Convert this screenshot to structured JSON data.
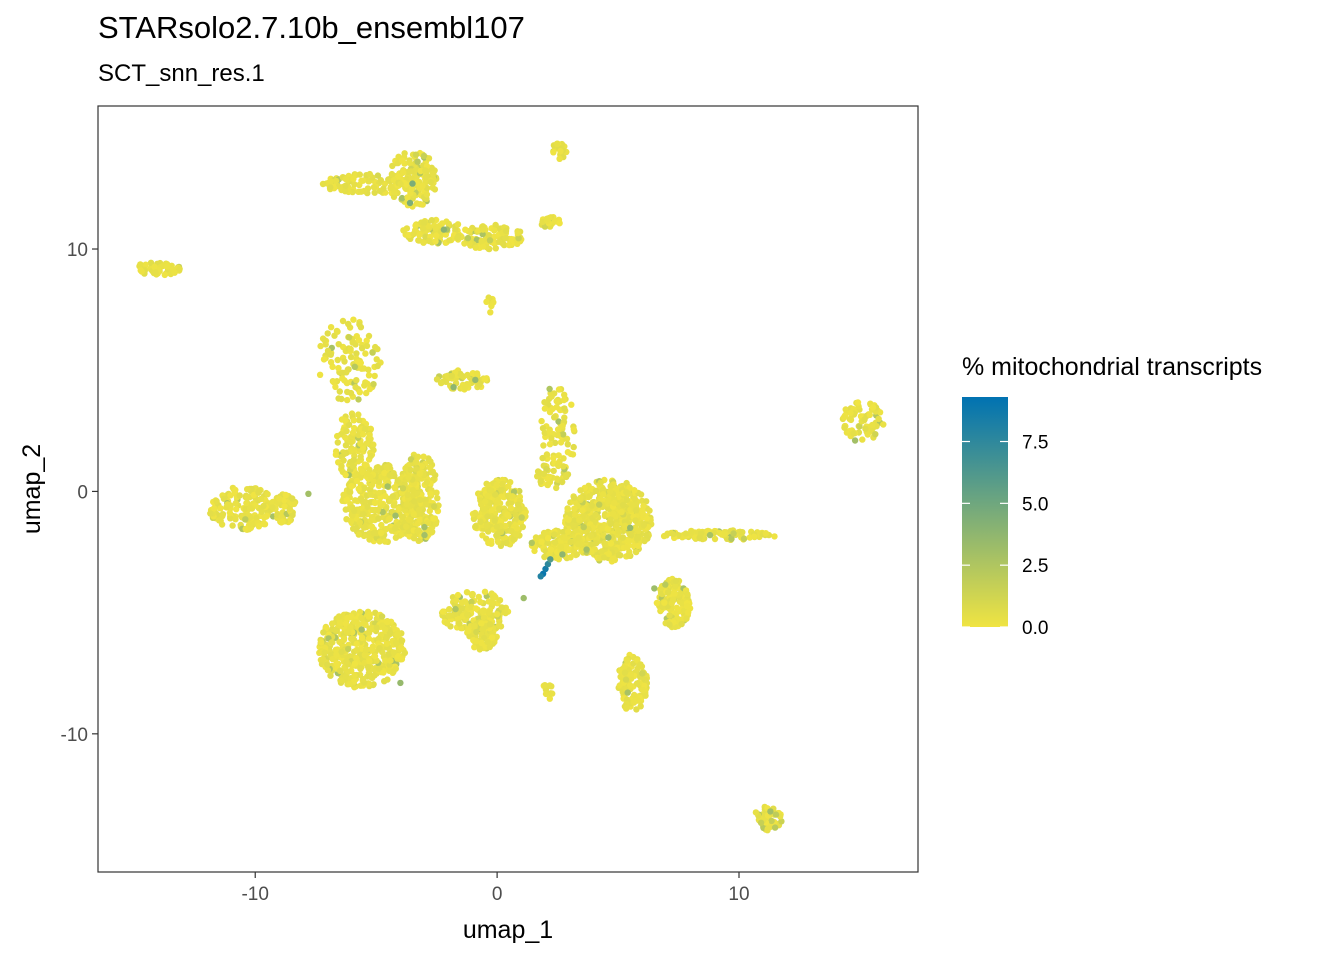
{
  "chart_data": {
    "type": "scatter",
    "title": "STARsolo2.7.10b_ensembl107",
    "subtitle": "SCT_snn_res.1",
    "xlabel": "umap_1",
    "ylabel": "umap_2",
    "xlim": [
      -16.5,
      17.4
    ],
    "ylim": [
      -15.7,
      15.9
    ],
    "x_ticks": [
      -10,
      0,
      10
    ],
    "x_tick_labels": [
      "-10",
      "0",
      "10"
    ],
    "y_ticks": [
      -10,
      0,
      10
    ],
    "y_tick_labels": [
      "-10",
      "0",
      "10"
    ],
    "grid": false,
    "color_scale": {
      "title": "% mitochondrial transcripts",
      "min": 0,
      "max": 9.3,
      "low_color": "#f0e442",
      "high_color": "#0072b2",
      "ticks": [
        0,
        2.5,
        5,
        7.5
      ],
      "tick_labels": [
        "0.0",
        "2.5",
        "5.0",
        "7.5"
      ],
      "position": "right"
    },
    "clusters": [
      {
        "cx": -5.3,
        "cy": 12.7,
        "rx": 2.0,
        "ry": 0.4,
        "n": 90
      },
      {
        "cx": -3.5,
        "cy": 12.9,
        "rx": 1.0,
        "ry": 1.2,
        "n": 150
      },
      {
        "cx": -2.6,
        "cy": 10.7,
        "rx": 1.3,
        "ry": 0.5,
        "n": 90
      },
      {
        "cx": -0.3,
        "cy": 10.5,
        "rx": 1.4,
        "ry": 0.5,
        "n": 110
      },
      {
        "cx": 2.6,
        "cy": 14.1,
        "rx": 0.3,
        "ry": 0.4,
        "n": 20
      },
      {
        "cx": 2.2,
        "cy": 11.1,
        "rx": 0.5,
        "ry": 0.25,
        "n": 20
      },
      {
        "cx": -14.0,
        "cy": 9.2,
        "rx": 0.9,
        "ry": 0.3,
        "n": 50
      },
      {
        "cx": -0.3,
        "cy": 7.7,
        "rx": 0.15,
        "ry": 0.4,
        "n": 10
      },
      {
        "cx": -6.1,
        "cy": 5.4,
        "rx": 1.3,
        "ry": 1.7,
        "n": 110
      },
      {
        "cx": -1.4,
        "cy": 4.6,
        "rx": 1.1,
        "ry": 0.4,
        "n": 60
      },
      {
        "cx": 2.5,
        "cy": 2.3,
        "rx": 0.7,
        "ry": 2.2,
        "n": 100
      },
      {
        "cx": 15.1,
        "cy": 2.9,
        "rx": 0.9,
        "ry": 0.8,
        "n": 70
      },
      {
        "cx": -5.9,
        "cy": 1.9,
        "rx": 0.8,
        "ry": 1.4,
        "n": 130
      },
      {
        "cx": -4.7,
        "cy": -0.5,
        "rx": 1.7,
        "ry": 1.6,
        "n": 380
      },
      {
        "cx": -3.2,
        "cy": -0.3,
        "rx": 0.8,
        "ry": 1.9,
        "n": 180
      },
      {
        "cx": -10.5,
        "cy": -0.7,
        "rx": 1.4,
        "ry": 0.9,
        "n": 150
      },
      {
        "cx": -8.8,
        "cy": -0.7,
        "rx": 0.5,
        "ry": 0.6,
        "n": 50
      },
      {
        "cx": 0.1,
        "cy": -0.9,
        "rx": 1.1,
        "ry": 1.4,
        "n": 250
      },
      {
        "cx": 4.6,
        "cy": -1.2,
        "rx": 1.8,
        "ry": 1.7,
        "n": 600
      },
      {
        "cx": 2.5,
        "cy": -2.2,
        "rx": 1.1,
        "ry": 0.6,
        "n": 120
      },
      {
        "cx": 9.2,
        "cy": -1.8,
        "rx": 2.4,
        "ry": 0.2,
        "n": 90
      },
      {
        "cx": 7.3,
        "cy": -4.6,
        "rx": 0.7,
        "ry": 1.0,
        "n": 140
      },
      {
        "cx": -0.9,
        "cy": -5.0,
        "rx": 1.4,
        "ry": 0.9,
        "n": 160
      },
      {
        "cx": -0.6,
        "cy": -5.9,
        "rx": 0.6,
        "ry": 0.7,
        "n": 70
      },
      {
        "cx": -5.6,
        "cy": -6.5,
        "rx": 1.8,
        "ry": 1.6,
        "n": 420
      },
      {
        "cx": 5.6,
        "cy": -7.9,
        "rx": 0.6,
        "ry": 1.2,
        "n": 120
      },
      {
        "cx": 2.1,
        "cy": -8.2,
        "rx": 0.2,
        "ry": 0.4,
        "n": 10
      },
      {
        "cx": 11.2,
        "cy": -13.5,
        "rx": 0.6,
        "ry": 0.5,
        "n": 50
      },
      {
        "cx": 1.9,
        "cy": 0.6,
        "rx": 0.3,
        "ry": 0.5,
        "n": 20
      }
    ],
    "high_mito_points": [
      {
        "x": 1.9,
        "y": -3.4,
        "value": 9.0
      },
      {
        "x": 2.0,
        "y": -3.2,
        "value": 8.5
      },
      {
        "x": 2.1,
        "y": -3.0,
        "value": 7.5
      },
      {
        "x": 1.8,
        "y": -3.5,
        "value": 8.0
      },
      {
        "x": 2.2,
        "y": -2.8,
        "value": 6.0
      },
      {
        "x": -3.6,
        "y": 11.9,
        "value": 4.5
      },
      {
        "x": -2.2,
        "y": 10.8,
        "value": 4.0
      },
      {
        "x": -3.5,
        "y": 12.7,
        "value": 4.5
      },
      {
        "x": -1.8,
        "y": 4.3,
        "value": 3.8
      },
      {
        "x": -0.9,
        "y": 4.6,
        "value": 3.5
      },
      {
        "x": 5.5,
        "y": -1.5,
        "value": 3.5
      },
      {
        "x": 4.6,
        "y": -1.9,
        "value": 3.2
      },
      {
        "x": 3.7,
        "y": -2.4,
        "value": 3.0
      },
      {
        "x": 2.7,
        "y": -2.6,
        "value": 3.8
      },
      {
        "x": -4.2,
        "y": -1.0,
        "value": 3.2
      },
      {
        "x": -3.0,
        "y": -1.8,
        "value": 3.0
      },
      {
        "x": -4.0,
        "y": -7.9,
        "value": 3.5
      },
      {
        "x": -5.6,
        "y": -5.7,
        "value": 3.0
      },
      {
        "x": 6.5,
        "y": -4.0,
        "value": 3.2
      },
      {
        "x": 14.8,
        "y": 2.1,
        "value": 3.0
      },
      {
        "x": 11.3,
        "y": -13.2,
        "value": 3.0
      },
      {
        "x": 1.1,
        "y": -4.4,
        "value": 3.2
      },
      {
        "x": -7.8,
        "y": -0.1,
        "value": 3.0
      },
      {
        "x": 8.8,
        "y": -1.8,
        "value": 2.8
      },
      {
        "x": 5.4,
        "y": -8.3,
        "value": 2.8
      }
    ]
  }
}
